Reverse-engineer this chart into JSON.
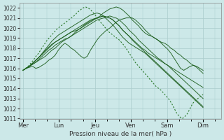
{
  "title": "",
  "xlabel": "Pression niveau de la mer( hPa )",
  "ylabel": "",
  "bg_color": "#cce8e8",
  "grid_color": "#aacccc",
  "line_color": "#1a5c1a",
  "line_color_dotted": "#2d7a2d",
  "ylim": [
    1011,
    1022.5
  ],
  "yticks": [
    1011,
    1012,
    1013,
    1014,
    1015,
    1016,
    1017,
    1018,
    1019,
    1020,
    1021,
    1022
  ],
  "day_labels": [
    "Mer",
    "Lun",
    "Jeu",
    "Ven",
    "Sam",
    "Dim"
  ],
  "day_positions": [
    0,
    1,
    2,
    3,
    4,
    5
  ],
  "xlim": [
    -0.1,
    5.5
  ],
  "series": [
    [
      1015.8,
      1016.0,
      1016.1,
      1016.2,
      1016.0,
      1016.1,
      1016.3,
      1016.5,
      1016.8,
      1017.0,
      1017.3,
      1017.8,
      1018.2,
      1018.5,
      1018.3,
      1018.0,
      1017.8,
      1017.5,
      1017.2,
      1017.0,
      1017.2,
      1017.8,
      1018.3,
      1018.8,
      1019.2,
      1019.5,
      1019.8,
      1020.0,
      1020.3,
      1020.6,
      1020.8,
      1020.9,
      1021.0,
      1021.1,
      1021.0,
      1020.8,
      1020.5,
      1020.2,
      1019.8,
      1019.5,
      1019.2,
      1019.0,
      1018.8,
      1018.6,
      1018.5,
      1018.3,
      1018.0,
      1017.8,
      1017.5,
      1017.3,
      1017.0,
      1016.8,
      1016.5,
      1016.3,
      1016.2,
      1016.0,
      1015.8
    ],
    [
      1015.8,
      1016.0,
      1016.2,
      1016.4,
      1016.6,
      1016.8,
      1017.0,
      1017.2,
      1017.5,
      1017.8,
      1018.0,
      1018.3,
      1018.6,
      1018.8,
      1019.0,
      1019.2,
      1019.5,
      1019.8,
      1020.0,
      1020.3,
      1020.5,
      1020.7,
      1020.9,
      1021.0,
      1021.1,
      1021.2,
      1021.1,
      1021.0,
      1020.8,
      1020.5,
      1020.2,
      1019.8,
      1019.5,
      1019.2,
      1018.9,
      1018.6,
      1018.3,
      1018.0,
      1017.8,
      1017.5,
      1017.3,
      1017.1,
      1016.9,
      1016.7,
      1016.5,
      1016.3,
      1016.1,
      1015.9,
      1015.7,
      1015.5,
      1015.3,
      1015.1,
      1014.9,
      1014.7,
      1014.5,
      1014.3,
      1014.1
    ],
    [
      1015.8,
      1016.0,
      1016.2,
      1016.4,
      1016.6,
      1016.9,
      1017.2,
      1017.5,
      1017.8,
      1018.0,
      1018.3,
      1018.5,
      1018.7,
      1018.9,
      1019.0,
      1019.2,
      1019.4,
      1019.6,
      1019.8,
      1020.0,
      1020.2,
      1020.4,
      1020.6,
      1020.8,
      1020.9,
      1021.0,
      1021.1,
      1021.2,
      1021.1,
      1021.0,
      1020.8,
      1020.5,
      1020.2,
      1019.8,
      1019.5,
      1019.2,
      1018.8,
      1018.5,
      1018.2,
      1017.9,
      1017.6,
      1017.3,
      1017.0,
      1016.8,
      1016.5,
      1016.3,
      1016.0,
      1015.7,
      1015.4,
      1015.1,
      1014.8,
      1014.5,
      1014.2,
      1013.9,
      1013.6,
      1013.3,
      1013.0
    ],
    [
      1015.8,
      1016.0,
      1016.2,
      1016.5,
      1016.8,
      1017.1,
      1017.4,
      1017.8,
      1018.1,
      1018.4,
      1018.6,
      1018.8,
      1019.0,
      1019.2,
      1019.4,
      1019.6,
      1019.8,
      1020.0,
      1020.2,
      1020.4,
      1020.6,
      1020.8,
      1020.9,
      1021.0,
      1021.1,
      1021.2,
      1021.1,
      1021.0,
      1020.8,
      1020.5,
      1020.2,
      1019.8,
      1019.5,
      1019.2,
      1018.8,
      1018.5,
      1018.2,
      1017.9,
      1017.6,
      1017.3,
      1017.0,
      1016.7,
      1016.4,
      1016.1,
      1015.8,
      1015.5,
      1015.2,
      1014.9,
      1014.6,
      1014.3,
      1014.0,
      1013.7,
      1013.4,
      1013.1,
      1012.8,
      1012.5,
      1012.2
    ],
    [
      1015.8,
      1016.0,
      1016.2,
      1016.5,
      1016.8,
      1017.1,
      1017.4,
      1017.7,
      1018.0,
      1018.3,
      1018.6,
      1018.8,
      1019.0,
      1019.2,
      1019.4,
      1019.6,
      1019.7,
      1019.8,
      1020.0,
      1020.2,
      1020.4,
      1020.6,
      1020.8,
      1021.0,
      1021.2,
      1021.5,
      1021.7,
      1021.9,
      1022.0,
      1022.1,
      1022.0,
      1021.8,
      1021.5,
      1021.2,
      1020.8,
      1020.5,
      1020.2,
      1019.8,
      1019.5,
      1019.3,
      1019.2,
      1019.0,
      1018.8,
      1018.5,
      1018.2,
      1017.9,
      1017.5,
      1017.0,
      1016.5,
      1016.0,
      1015.8,
      1016.0,
      1016.2,
      1016.3,
      1016.1,
      1015.8,
      1015.5
    ],
    [
      1015.8,
      1016.0,
      1016.2,
      1016.5,
      1016.8,
      1017.1,
      1017.5,
      1017.9,
      1018.3,
      1018.7,
      1019.0,
      1019.3,
      1019.5,
      1019.7,
      1019.9,
      1020.1,
      1020.3,
      1020.5,
      1020.7,
      1020.9,
      1021.1,
      1021.3,
      1021.4,
      1021.5,
      1021.4,
      1021.2,
      1020.9,
      1020.6,
      1020.3,
      1019.9,
      1019.5,
      1019.1,
      1018.8,
      1018.5,
      1018.3,
      1018.1,
      1017.9,
      1017.7,
      1017.5,
      1017.2,
      1016.9,
      1016.6,
      1016.3,
      1016.0,
      1015.7,
      1015.4,
      1015.1,
      1014.8,
      1014.5,
      1014.2,
      1013.9,
      1013.6,
      1013.3,
      1013.0,
      1012.7,
      1012.4,
      1012.1
    ]
  ],
  "dotted_series": [
    1015.8,
    1016.0,
    1016.2,
    1016.5,
    1016.8,
    1017.2,
    1017.5,
    1017.9,
    1018.3,
    1018.7,
    1019.0,
    1019.3,
    1019.6,
    1019.9,
    1020.1,
    1020.3,
    1020.5,
    1020.7,
    1020.9,
    1021.1,
    1021.3,
    1021.6,
    1021.8,
    1022.0,
    1022.1,
    1022.0,
    1021.8,
    1021.5,
    1021.2,
    1020.8,
    1020.5,
    1020.2,
    1019.9,
    1019.6,
    1019.4,
    1019.2,
    1019.0,
    1018.8,
    1018.5,
    1018.2,
    1017.8,
    1017.4,
    1017.0,
    1016.6,
    1016.3,
    1016.0,
    1015.7,
    1015.4,
    1015.1,
    1014.8,
    1014.5,
    1014.2,
    1014.0,
    1013.8,
    1013.5,
    1013.2,
    1012.9,
    1012.5,
    1012.0,
    1011.5,
    1011.2,
    1011.0,
    1011.2,
    1011.5,
    1012.0,
    1012.5,
    1012.8,
    1013.0,
    1013.2,
    1013.4
  ]
}
